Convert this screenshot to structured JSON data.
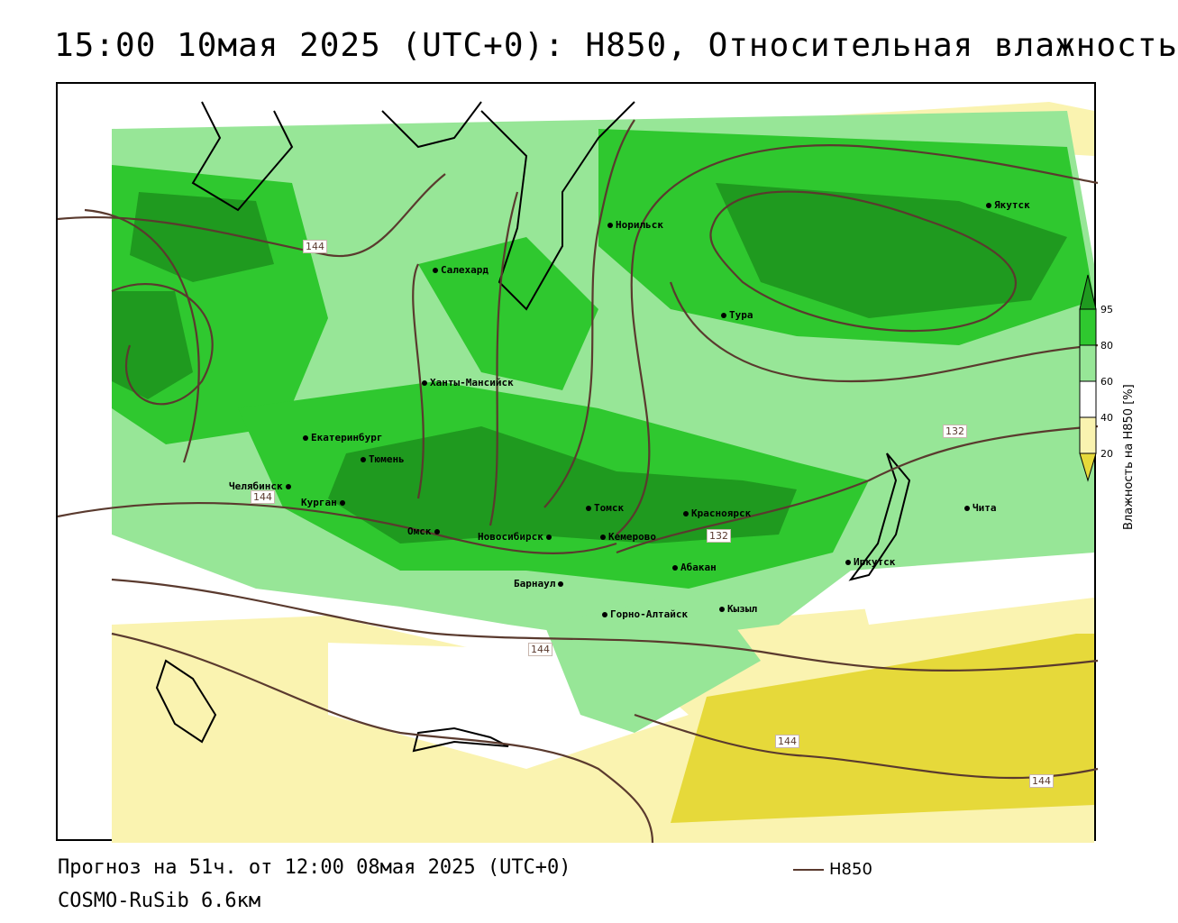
{
  "title": "15:00 10мая 2025 (UTC+0): H850, Относительная влажность",
  "map": {
    "cities": [
      {
        "name": "Норильск"
      },
      {
        "name": "Якутск"
      },
      {
        "name": "Салехард"
      },
      {
        "name": "Тура"
      },
      {
        "name": "Ханты-Мансийск"
      },
      {
        "name": "Екатеринбург"
      },
      {
        "name": "Тюмень"
      },
      {
        "name": "Челябинск"
      },
      {
        "name": "Курган"
      },
      {
        "name": "Омск"
      },
      {
        "name": "Новосибирск"
      },
      {
        "name": "Томск"
      },
      {
        "name": "Кемерово"
      },
      {
        "name": "Красноярск"
      },
      {
        "name": "Абакан"
      },
      {
        "name": "Барнаул"
      },
      {
        "name": "Иркутск"
      },
      {
        "name": "Чита"
      },
      {
        "name": "Горно-Алтайск"
      },
      {
        "name": "Кызыл"
      }
    ],
    "contour_labels": [
      "144",
      "144",
      "132",
      "132",
      "144",
      "144",
      "144"
    ],
    "colors": {
      "contour": "#5a3a2e",
      "hum_95": "#1f9a1f",
      "hum_80": "#2fc82f",
      "hum_60": "#97e697",
      "hum_40": "#ffffff",
      "hum_20": "#faf3b0",
      "hum_0": "#e6d93a"
    }
  },
  "legend": {
    "title": "Влажность на H850 [%]",
    "ticks": [
      "95",
      "80",
      "60",
      "40",
      "20"
    ]
  },
  "footer": {
    "forecast": "Прогноз на 51ч. от 12:00 08мая 2025 (UTC+0)",
    "model": "COSMO-RuSib 6.6км",
    "series_label": "H850"
  }
}
